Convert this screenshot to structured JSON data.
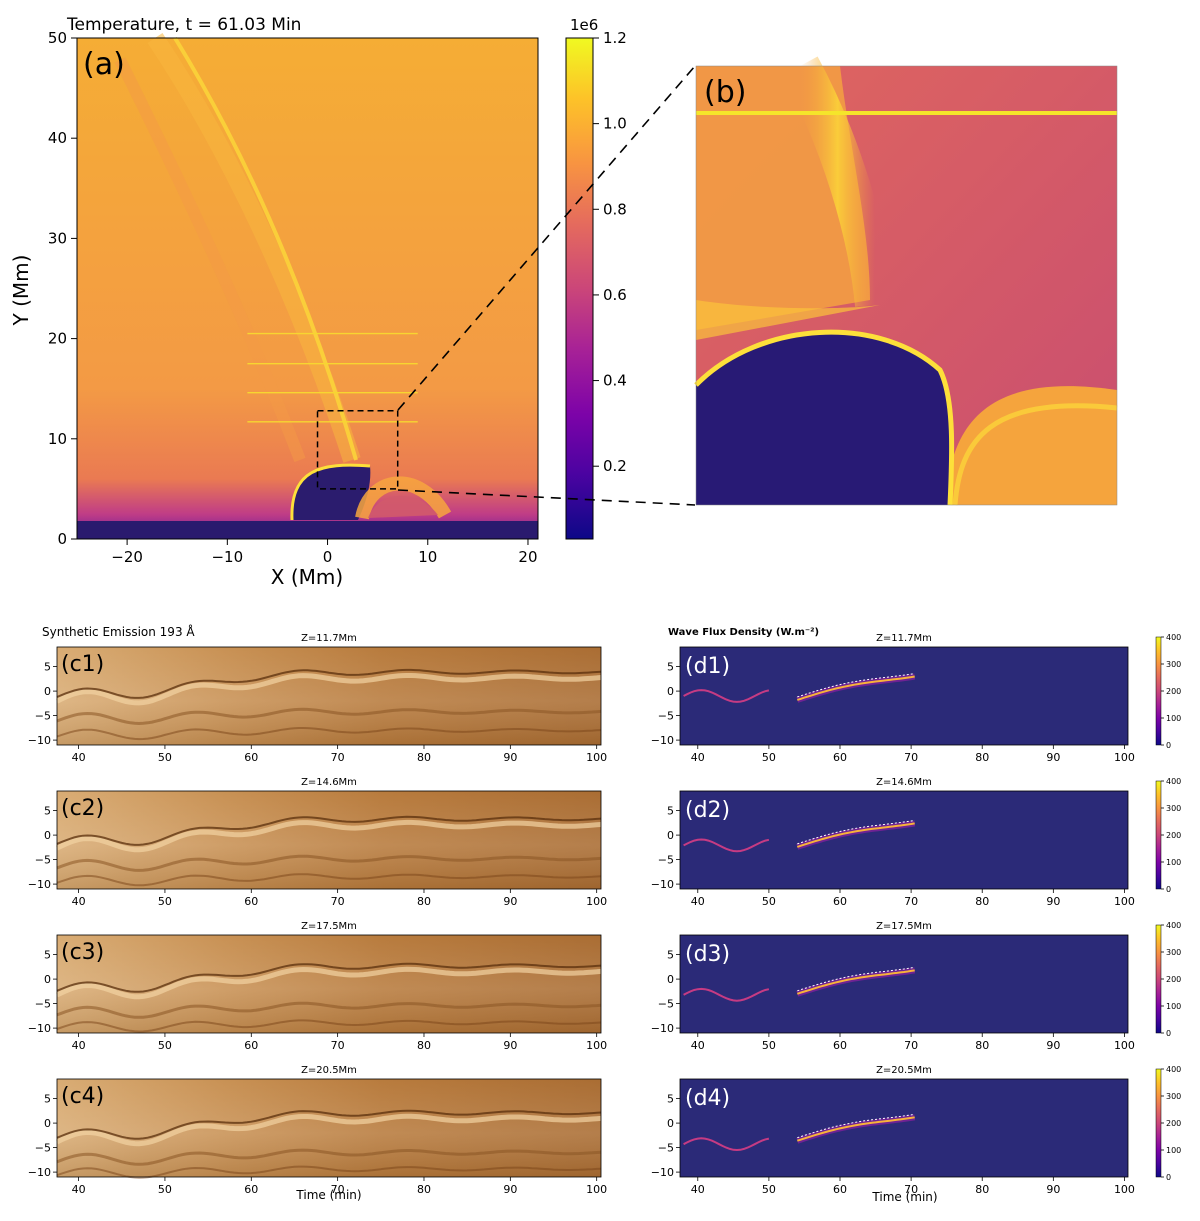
{
  "figure": {
    "panel_a": {
      "title": "Temperature, t = 61.03 Min",
      "label": "(a)",
      "xlabel": "X (Mm)",
      "ylabel": "Y (Mm)",
      "xlim": [
        -25,
        21
      ],
      "ylim": [
        0,
        50
      ],
      "xticks": [
        "−20",
        "−10",
        "0",
        "10",
        "20"
      ],
      "xtick_values": [
        -20,
        -10,
        0,
        10,
        20
      ],
      "yticks": [
        "0",
        "10",
        "20",
        "30",
        "40",
        "50"
      ],
      "ytick_values": [
        0,
        10,
        20,
        30,
        40,
        50
      ],
      "slit_heights_mm": [
        11.7,
        14.6,
        17.5,
        20.5
      ],
      "slit_x_range_mm": [
        -8,
        9
      ],
      "zoom_box_mm": {
        "x0": -1,
        "x1": 7,
        "y0": 5,
        "y1": 12.8
      }
    },
    "colorbar": {
      "offset_label": "1e6",
      "ticks": [
        "0.2",
        "0.4",
        "0.6",
        "0.8",
        "1.0",
        "1.2"
      ],
      "tick_values": [
        0.2,
        0.4,
        0.6,
        0.8,
        1.0,
        1.2
      ],
      "range": [
        0.03,
        1.2
      ],
      "colormap": "plasma"
    },
    "panel_b": {
      "label": "(b)"
    },
    "c_header": "Synthetic Emission 193 Å",
    "d_header": "Wave Flux Density (W.m⁻²)",
    "time_label": "Time (min)",
    "time_ticks": [
      "40",
      "50",
      "60",
      "70",
      "80",
      "90",
      "100"
    ],
    "time_tick_values": [
      40,
      50,
      60,
      70,
      80,
      90,
      100
    ],
    "time_range": [
      37.5,
      100.5
    ],
    "y_ticks": [
      "5",
      "0",
      "−5",
      "−10"
    ],
    "y_tick_values": [
      5,
      0,
      -5,
      -10
    ],
    "y_range": [
      -11,
      9
    ],
    "flux_cbar_ticks": [
      "400",
      "300",
      "200",
      "100",
      "0"
    ],
    "flux_cbar_values": [
      400,
      300,
      200,
      100,
      0
    ],
    "rows": [
      {
        "c_label": "(c1)",
        "d_label": "(d1)",
        "z": "Z=11.7Mm"
      },
      {
        "c_label": "(c2)",
        "d_label": "(d2)",
        "z": "Z=14.6Mm"
      },
      {
        "c_label": "(c3)",
        "d_label": "(d3)",
        "z": "Z=17.5Mm"
      },
      {
        "c_label": "(c4)",
        "d_label": "(d4)",
        "z": "Z=20.5Mm"
      }
    ]
  },
  "chart_data": [
    {
      "type": "heatmap",
      "title": "Temperature, t = 61.03 Min",
      "xlabel": "X (Mm)",
      "ylabel": "Y (Mm)",
      "xlim": [
        -25,
        21
      ],
      "ylim": [
        0,
        50
      ],
      "colorbar_range": [
        0.03,
        1.2
      ],
      "colorbar_multiplier": "1e6"
    },
    {
      "type": "heatmap",
      "title": "Synthetic Emission 193 Å",
      "xlabel": "Time (min)",
      "xlim": [
        37.5,
        100.5
      ],
      "ylim": [
        -11,
        9
      ],
      "panels": [
        "Z=11.7Mm",
        "Z=14.6Mm",
        "Z=17.5Mm",
        "Z=20.5Mm"
      ]
    },
    {
      "type": "heatmap",
      "title": "Wave Flux Density (W.m⁻²)",
      "xlabel": "Time (min)",
      "xlim": [
        37.5,
        100.5
      ],
      "ylim": [
        -11,
        9
      ],
      "colorbar_range": [
        0,
        400
      ],
      "panels": [
        "Z=11.7Mm",
        "Z=14.6Mm",
        "Z=17.5Mm",
        "Z=20.5Mm"
      ]
    }
  ]
}
